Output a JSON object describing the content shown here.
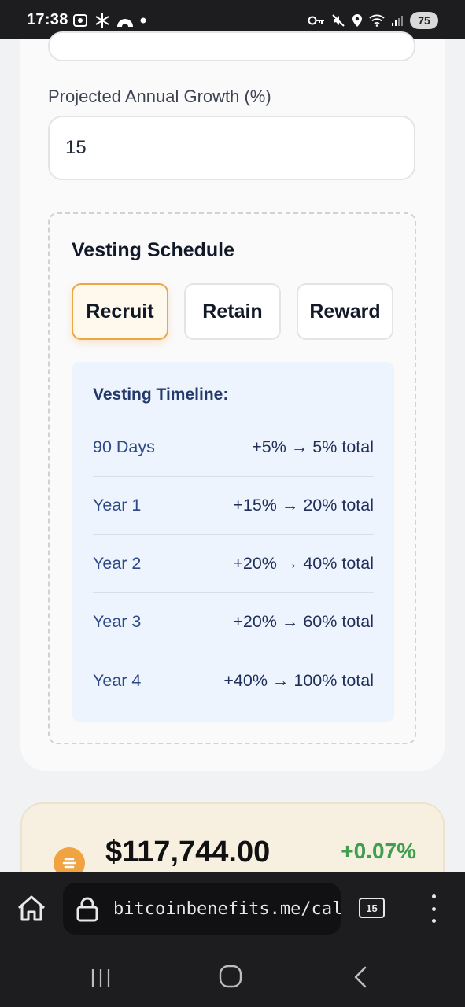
{
  "statusbar": {
    "time": "17:38",
    "battery": "75"
  },
  "form": {
    "growth_label": "Projected Annual Growth (%)",
    "growth_value": "15"
  },
  "vesting": {
    "title": "Vesting Schedule",
    "tabs": [
      {
        "label": "Recruit",
        "active": true
      },
      {
        "label": "Retain",
        "active": false
      },
      {
        "label": "Reward",
        "active": false
      }
    ],
    "timeline_title": "Vesting Timeline:",
    "rows": [
      {
        "period": "90 Days",
        "value": "+5% → 5% total"
      },
      {
        "period": "Year 1",
        "value": "+15% → 20% total"
      },
      {
        "period": "Year 2",
        "value": "+20% → 40% total"
      },
      {
        "period": "Year 3",
        "value": "+20% → 60% total"
      },
      {
        "period": "Year 4",
        "value": "+40% → 100% total"
      }
    ]
  },
  "price": {
    "value": "$117,744.00",
    "change": "+0.07%"
  },
  "browser": {
    "url": "bitcoinbenefits.me/calcu",
    "tab_count": "15"
  },
  "colors": {
    "accent_orange": "#eba744",
    "timeline_bg": "#eef4fd",
    "price_up": "#3f9e4f"
  }
}
